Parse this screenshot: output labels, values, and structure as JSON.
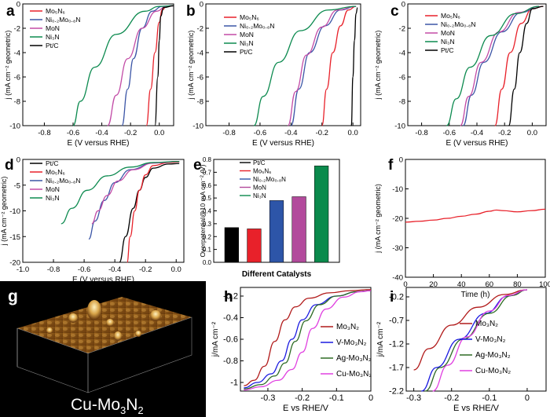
{
  "colors": {
    "red": "#e8212a",
    "blue": "#3b55a6",
    "magenta": "#c24ba6",
    "green": "#0c8a4f",
    "black": "#000000",
    "darkred": "#b11a1a",
    "navy": "#1a1ae0",
    "darkgreen": "#2d6b24",
    "pink": "#e040e0",
    "bar_red": "#e8212a",
    "bar_blue": "#2d55a8",
    "bar_magenta": "#b24a9c",
    "bar_green": "#0a8a4c"
  },
  "afm": {
    "caption": "Cu-Mo",
    "sub": "3",
    "caption2": "N",
    "sub2": "2"
  },
  "chart_data": [
    {
      "id": "a",
      "type": "line",
      "panel_label": "a",
      "xlabel": "E (V versus RHE)",
      "ylabel": "j (mA cm⁻² geometric)",
      "xlim": [
        -0.95,
        0.1
      ],
      "ylim": [
        -10,
        0
      ],
      "xticks": [
        "-0.8",
        "-0.6",
        "-0.4",
        "-0.2",
        "0.0"
      ],
      "yticks": [
        "0",
        "-2",
        "-4",
        "-6",
        "-8",
        "-10"
      ],
      "legend": [
        "Mo₅N₆",
        "Ni₀.₂Mo₀.₈N",
        "MoN",
        "Ni₃N",
        "Pt/C"
      ],
      "legend_position": "top-left",
      "series": [
        {
          "name": "Mo₅N₆",
          "color": "red",
          "x": [
            -0.09,
            -0.06,
            -0.03,
            0.0,
            0.02,
            0.05,
            0.1
          ],
          "y": [
            -10,
            -7,
            -4,
            -1.5,
            -0.5,
            -0.2,
            -0.15
          ]
        },
        {
          "name": "Ni₀.₂Mo₀.₈N",
          "color": "blue",
          "x": [
            -0.26,
            -0.22,
            -0.18,
            -0.12,
            -0.05,
            0.02,
            0.1
          ],
          "y": [
            -10,
            -7,
            -4.5,
            -2,
            -0.6,
            -0.2,
            -0.15
          ]
        },
        {
          "name": "MoN",
          "color": "magenta",
          "x": [
            -0.36,
            -0.3,
            -0.22,
            -0.12,
            -0.02,
            0.05,
            0.1
          ],
          "y": [
            -10,
            -7.5,
            -4.5,
            -2,
            -0.6,
            -0.2,
            -0.15
          ]
        },
        {
          "name": "Ni₃N",
          "color": "green",
          "x": [
            -0.6,
            -0.55,
            -0.45,
            -0.3,
            -0.1,
            0.0,
            0.1
          ],
          "y": [
            -10,
            -8,
            -5.2,
            -2.5,
            -0.6,
            -0.2,
            -0.15
          ]
        },
        {
          "name": "Pt/C",
          "color": "black",
          "x": [
            -0.03,
            -0.01,
            0.0,
            0.01,
            0.03,
            0.1
          ],
          "y": [
            -10,
            -6,
            -3,
            -1,
            -0.3,
            -0.15
          ]
        }
      ]
    },
    {
      "id": "b",
      "type": "line",
      "panel_label": "b",
      "xlabel": "E (V versus RHE)",
      "ylabel": "j (mA cm⁻² geometric)",
      "xlim": [
        -0.95,
        0.05
      ],
      "ylim": [
        -10,
        0
      ],
      "xticks": [
        "-0.8",
        "-0.6",
        "-0.4",
        "-0.2",
        "0.0"
      ],
      "yticks": [
        "0",
        "-2",
        "-4",
        "-6",
        "-8",
        "-10"
      ],
      "legend": [
        "Mo₅N₆",
        "Ni₀.₂Mo₀.₈N",
        "MoN",
        "Ni₃N",
        "Pt/C"
      ],
      "legend_position": "top-center",
      "series": [
        {
          "name": "Mo₅N₆",
          "color": "red",
          "x": [
            -0.2,
            -0.17,
            -0.13,
            -0.08,
            -0.03,
            0.02
          ],
          "y": [
            -10,
            -7,
            -4,
            -1.8,
            -0.5,
            -0.2
          ]
        },
        {
          "name": "Ni₀.₂Mo₀.₈N",
          "color": "blue",
          "x": [
            -0.4,
            -0.35,
            -0.28,
            -0.18,
            -0.08,
            0.02
          ],
          "y": [
            -10,
            -7,
            -4,
            -1.8,
            -0.5,
            -0.2
          ]
        },
        {
          "name": "MoN",
          "color": "magenta",
          "x": [
            -0.42,
            -0.37,
            -0.3,
            -0.2,
            -0.1,
            0.02
          ],
          "y": [
            -10,
            -7.2,
            -4.2,
            -1.9,
            -0.5,
            -0.2
          ]
        },
        {
          "name": "Ni₃N",
          "color": "green",
          "x": [
            -0.64,
            -0.58,
            -0.48,
            -0.34,
            -0.16,
            0.02
          ],
          "y": [
            -10,
            -7.6,
            -4.8,
            -2.2,
            -0.5,
            -0.2
          ]
        },
        {
          "name": "Pt/C",
          "color": "black",
          "x": [
            -0.01,
            0.0,
            0.01,
            0.02,
            0.03
          ],
          "y": [
            -10,
            -6,
            -3,
            -0.8,
            -0.3
          ]
        }
      ]
    },
    {
      "id": "c",
      "type": "line",
      "panel_label": "c",
      "xlabel": "E (V versus RHE)",
      "ylabel": "j (mA cm⁻² geometric)",
      "xlim": [
        -0.9,
        0.1
      ],
      "ylim": [
        -10,
        0
      ],
      "xticks": [
        "-0.8",
        "-0.6",
        "-0.4",
        "-0.2",
        "0.0"
      ],
      "yticks": [
        "0",
        "-2",
        "-4",
        "-6",
        "-8",
        "-10"
      ],
      "legend": [
        "Mo₅N₆",
        "Ni₀.₂Mo₀.₈N",
        "MoN",
        "Ni₃N",
        "Pt/C"
      ],
      "legend_position": "top-left",
      "series": [
        {
          "name": "Mo₅N₆",
          "color": "red",
          "x": [
            -0.27,
            -0.22,
            -0.16,
            -0.08,
            0.0,
            0.08
          ],
          "y": [
            -10,
            -7,
            -4,
            -1.6,
            -0.4,
            -0.2
          ]
        },
        {
          "name": "Ni₀.₂Mo₀.₈N",
          "color": "blue",
          "x": [
            -0.5,
            -0.44,
            -0.35,
            -0.22,
            -0.08,
            0.05
          ],
          "y": [
            -10,
            -7.5,
            -4.8,
            -2.3,
            -0.7,
            -0.2
          ]
        },
        {
          "name": "MoN",
          "color": "magenta",
          "x": [
            -0.52,
            -0.46,
            -0.37,
            -0.24,
            -0.1,
            0.05
          ],
          "y": [
            -10,
            -7.6,
            -4.8,
            -2.3,
            -0.7,
            -0.2
          ]
        },
        {
          "name": "Ni₃N",
          "color": "green",
          "x": [
            -0.62,
            -0.55,
            -0.45,
            -0.3,
            -0.12,
            0.05
          ],
          "y": [
            -10,
            -7.8,
            -5.2,
            -2.6,
            -0.8,
            -0.2
          ]
        },
        {
          "name": "Pt/C",
          "color": "black",
          "x": [
            -0.17,
            -0.13,
            -0.09,
            -0.04,
            0.0,
            0.08
          ],
          "y": [
            -10,
            -7,
            -4,
            -1.6,
            -0.4,
            -0.2
          ]
        }
      ]
    },
    {
      "id": "d",
      "type": "line",
      "panel_label": "d",
      "xlabel": "E (V versus RHE)",
      "ylabel": "j (mA cm⁻² geometric)",
      "xlim": [
        -1.0,
        0.05
      ],
      "ylim": [
        -20,
        0
      ],
      "xticks": [
        "-1.0",
        "-0.8",
        "-0.6",
        "-0.4",
        "-0.2",
        "0.0"
      ],
      "yticks": [
        "0",
        "-5",
        "-10",
        "-15",
        "-20"
      ],
      "legend": [
        "Pt/C",
        "Mo₅N₆",
        "Ni₀.₂Mo₀.₈N",
        "MoN",
        "Ni₃N"
      ],
      "legend_position": "top-left",
      "series": [
        {
          "name": "Pt/C",
          "color": "black",
          "x": [
            -0.37,
            -0.33,
            -0.28,
            -0.24,
            -0.2,
            -0.15,
            -0.05,
            0.02
          ],
          "y": [
            -20,
            -15,
            -9.5,
            -6,
            -3.5,
            -1.7,
            -0.9,
            -0.8
          ]
        },
        {
          "name": "Mo₅N₆",
          "color": "red",
          "x": [
            -0.32,
            -0.3,
            -0.27,
            -0.24,
            -0.2,
            -0.15,
            -0.05,
            0.02
          ],
          "y": [
            -20,
            -15,
            -10,
            -6,
            -3,
            -1.2,
            -0.6,
            -0.5
          ]
        },
        {
          "name": "Ni₀.₂Mo₀.₈N",
          "color": "blue",
          "x": [
            -0.57,
            -0.53,
            -0.47,
            -0.4,
            -0.3,
            -0.15,
            0.02
          ],
          "y": [
            -15.5,
            -12,
            -8,
            -4.5,
            -2,
            -0.7,
            -0.4
          ]
        },
        {
          "name": "MoN",
          "color": "magenta",
          "x": [
            -0.55,
            -0.51,
            -0.45,
            -0.38,
            -0.28,
            -0.15,
            0.02
          ],
          "y": [
            -12.5,
            -10,
            -7,
            -4.2,
            -2,
            -0.7,
            -0.4
          ]
        },
        {
          "name": "Ni₃N",
          "color": "green",
          "x": [
            -0.75,
            -0.68,
            -0.58,
            -0.45,
            -0.3,
            -0.15,
            0.02
          ],
          "y": [
            -12.5,
            -9.5,
            -6,
            -3.2,
            -1.5,
            -0.6,
            -0.4
          ]
        }
      ]
    },
    {
      "id": "e",
      "type": "bar",
      "panel_label": "e",
      "xlabel": "Different Catalysts",
      "ylabel": "Overpotential@10 mA cm⁻² (V)",
      "ylim": [
        0,
        0.8
      ],
      "yticks": [
        "0.0",
        "0.1",
        "0.2",
        "0.3",
        "0.4",
        "0.5",
        "0.6",
        "0.7",
        "0.8"
      ],
      "legend": [
        "Pt/C",
        "Mo₅N₆",
        "Ni₀.₂Mo₀.₈N",
        "MoN",
        "Ni₃N"
      ],
      "legend_position": "top-left",
      "categories": [
        "Pt/C",
        "Mo₅N₆",
        "Ni₀.₂Mo₀.₈N",
        "MoN",
        "Ni₃N"
      ],
      "values": [
        0.27,
        0.26,
        0.48,
        0.51,
        0.75
      ],
      "bar_colors": [
        "black",
        "bar_red",
        "bar_blue",
        "bar_magenta",
        "bar_green"
      ]
    },
    {
      "id": "f",
      "type": "line",
      "panel_label": "f",
      "xlabel": "Time (h)",
      "ylabel": "j (mA cm⁻² geometric)",
      "xlim": [
        0,
        100
      ],
      "ylim": [
        -40,
        0
      ],
      "xticks": [
        "0",
        "20",
        "40",
        "60",
        "80",
        "100"
      ],
      "yticks": [
        "0",
        "-10",
        "-20",
        "-30",
        "-40"
      ],
      "series": [
        {
          "name": "",
          "color": "red",
          "x": [
            0,
            10,
            20,
            30,
            40,
            50,
            60,
            65,
            70,
            80,
            90,
            100
          ],
          "y": [
            -21.3,
            -21.0,
            -20.6,
            -20.0,
            -19.3,
            -18.6,
            -17.6,
            -17.2,
            -17.4,
            -17.8,
            -17.4,
            -16.9
          ]
        }
      ]
    },
    {
      "id": "h",
      "type": "line",
      "panel_label": "h",
      "xlabel": "E vs RHE/V",
      "ylabel": "j/mA cm⁻²",
      "xlim": [
        -0.38,
        0.0
      ],
      "ylim": [
        -1.08,
        -0.12
      ],
      "xticks": [
        "-0.3",
        "-0.2",
        "-0.1",
        "0"
      ],
      "yticks": [
        "-0.2",
        "-0.4",
        "-0.6",
        "-0.8",
        "-1"
      ],
      "legend": [
        "Mo₃N₂",
        "V-Mo₃N₂",
        "Ag-Mo₃N₂",
        "Cu-Mo₃N₂"
      ],
      "legend_position": "bottom-right",
      "series": [
        {
          "name": "Mo₃N₂",
          "color": "darkred",
          "x": [
            -0.37,
            -0.34,
            -0.31,
            -0.28,
            -0.25,
            -0.22,
            -0.18,
            -0.12,
            -0.06,
            0.0
          ],
          "y": [
            -1.03,
            -0.98,
            -0.85,
            -0.62,
            -0.42,
            -0.3,
            -0.22,
            -0.17,
            -0.15,
            -0.14
          ]
        },
        {
          "name": "V-Mo₃N₂",
          "color": "navy",
          "x": [
            -0.37,
            -0.33,
            -0.29,
            -0.26,
            -0.23,
            -0.2,
            -0.16,
            -0.1,
            -0.04,
            0.0
          ],
          "y": [
            -1.05,
            -1.0,
            -0.92,
            -0.8,
            -0.6,
            -0.42,
            -0.28,
            -0.2,
            -0.16,
            -0.15
          ]
        },
        {
          "name": "Ag-Mo₃N₂",
          "color": "darkgreen",
          "x": [
            -0.37,
            -0.32,
            -0.28,
            -0.25,
            -0.22,
            -0.19,
            -0.15,
            -0.1,
            -0.04,
            0.0
          ],
          "y": [
            -1.06,
            -1.02,
            -0.94,
            -0.82,
            -0.62,
            -0.43,
            -0.28,
            -0.2,
            -0.16,
            -0.15
          ]
        },
        {
          "name": "Cu-Mo₃N₂",
          "color": "pink",
          "x": [
            -0.37,
            -0.32,
            -0.27,
            -0.23,
            -0.2,
            -0.17,
            -0.13,
            -0.08,
            -0.03,
            0.0
          ],
          "y": [
            -1.07,
            -1.04,
            -0.98,
            -0.88,
            -0.72,
            -0.5,
            -0.32,
            -0.21,
            -0.16,
            -0.15
          ]
        }
      ]
    },
    {
      "id": "i",
      "type": "line",
      "panel_label": "i",
      "xlabel": "E vs RHE/V",
      "ylabel": "j/mA cm⁻²",
      "xlim": [
        -0.32,
        0.05
      ],
      "ylim": [
        -2.2,
        0.0
      ],
      "xticks": [
        "-0.3",
        "-0.2",
        "-0.1",
        "0"
      ],
      "yticks": [
        "-0.2",
        "-0.7",
        "-1.2",
        "-1.7",
        "-2.2"
      ],
      "legend": [
        "Mo₃N₂",
        "V-Mo₃N₂",
        "Ag-Mo₃N₂",
        "Cu-Mo₃N₂"
      ],
      "legend_position": "top-right",
      "series": [
        {
          "name": "Mo₃N₂",
          "color": "darkred",
          "x": [
            -0.3,
            -0.26,
            -0.2,
            -0.13,
            -0.06,
            0.0
          ],
          "y": [
            -1.75,
            -1.3,
            -0.8,
            -0.42,
            -0.15,
            -0.05
          ]
        },
        {
          "name": "V-Mo₃N₂",
          "color": "navy",
          "x": [
            -0.28,
            -0.24,
            -0.18,
            -0.11,
            -0.05,
            0.0
          ],
          "y": [
            -2.2,
            -1.7,
            -1.1,
            -0.55,
            -0.18,
            -0.05
          ]
        },
        {
          "name": "Ag-Mo₃N₂",
          "color": "darkgreen",
          "x": [
            -0.27,
            -0.23,
            -0.17,
            -0.1,
            -0.04,
            0.0
          ],
          "y": [
            -2.2,
            -1.7,
            -1.1,
            -0.55,
            -0.17,
            -0.05
          ]
        },
        {
          "name": "Cu-Mo₃N₂",
          "color": "pink",
          "x": [
            -0.25,
            -0.21,
            -0.16,
            -0.1,
            -0.05,
            0.0
          ],
          "y": [
            -2.2,
            -1.65,
            -1.05,
            -0.5,
            -0.17,
            -0.05
          ]
        }
      ]
    }
  ]
}
